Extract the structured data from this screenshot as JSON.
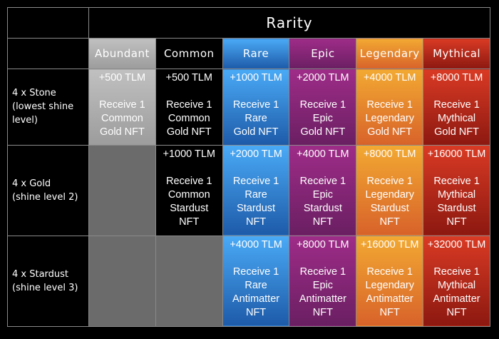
{
  "header": {
    "title": "Rarity"
  },
  "columns": [
    "Abundant",
    "Common",
    "Rare",
    "Epic",
    "Legendary",
    "Mythical"
  ],
  "rows": [
    {
      "label": [
        "4 x Stone",
        "(lowest shine",
        "level)"
      ],
      "cells": [
        {
          "reward": "+500 TLM",
          "text": [
            "Receive 1",
            "Common",
            "Gold NFT"
          ]
        },
        {
          "reward": "+500 TLM",
          "text": [
            "Receive 1",
            "Common",
            "Gold NFT"
          ]
        },
        {
          "reward": "+1000 TLM",
          "text": [
            "Receive 1",
            "Rare",
            "Gold NFT"
          ]
        },
        {
          "reward": "+2000 TLM",
          "text": [
            "Receive 1",
            "Epic",
            "Gold NFT"
          ]
        },
        {
          "reward": "+4000 TLM",
          "text": [
            "Receive 1",
            "Legendary",
            "Gold NFT"
          ]
        },
        {
          "reward": "+8000 TLM",
          "text": [
            "Receive 1",
            "Mythical",
            "Gold NFT"
          ]
        }
      ]
    },
    {
      "label": [
        "4 x Gold",
        "(shine level 2)"
      ],
      "cells": [
        null,
        {
          "reward": "+1000 TLM",
          "text": [
            "Receive 1",
            "Common",
            "Stardust",
            "NFT"
          ]
        },
        {
          "reward": "+2000 TLM",
          "text": [
            "Receive 1",
            "Rare",
            "Stardust",
            "NFT"
          ]
        },
        {
          "reward": "+4000 TLM",
          "text": [
            "Receive 1",
            "Epic",
            "Stardust",
            "NFT"
          ]
        },
        {
          "reward": "+8000 TLM",
          "text": [
            "Receive 1",
            "Legendary",
            "Stardust",
            "NFT"
          ]
        },
        {
          "reward": "+16000 TLM",
          "text": [
            "Receive 1",
            "Mythical",
            "Stardust",
            "NFT"
          ]
        }
      ]
    },
    {
      "label": [
        "4 x Stardust",
        "(shine level 3)"
      ],
      "cells": [
        null,
        null,
        {
          "reward": "+4000 TLM",
          "text": [
            "Receive 1",
            "Rare",
            "Antimatter",
            "NFT"
          ]
        },
        {
          "reward": "+8000 TLM",
          "text": [
            "Receive 1",
            "Epic",
            "Antimatter",
            "NFT"
          ]
        },
        {
          "reward": "+16000 TLM",
          "text": [
            "Receive 1",
            "Legendary",
            "Antimatter",
            "NFT"
          ]
        },
        {
          "reward": "+32000 TLM",
          "text": [
            "Receive 1",
            "Mythical",
            "Antimatter",
            "NFT"
          ]
        }
      ]
    }
  ]
}
